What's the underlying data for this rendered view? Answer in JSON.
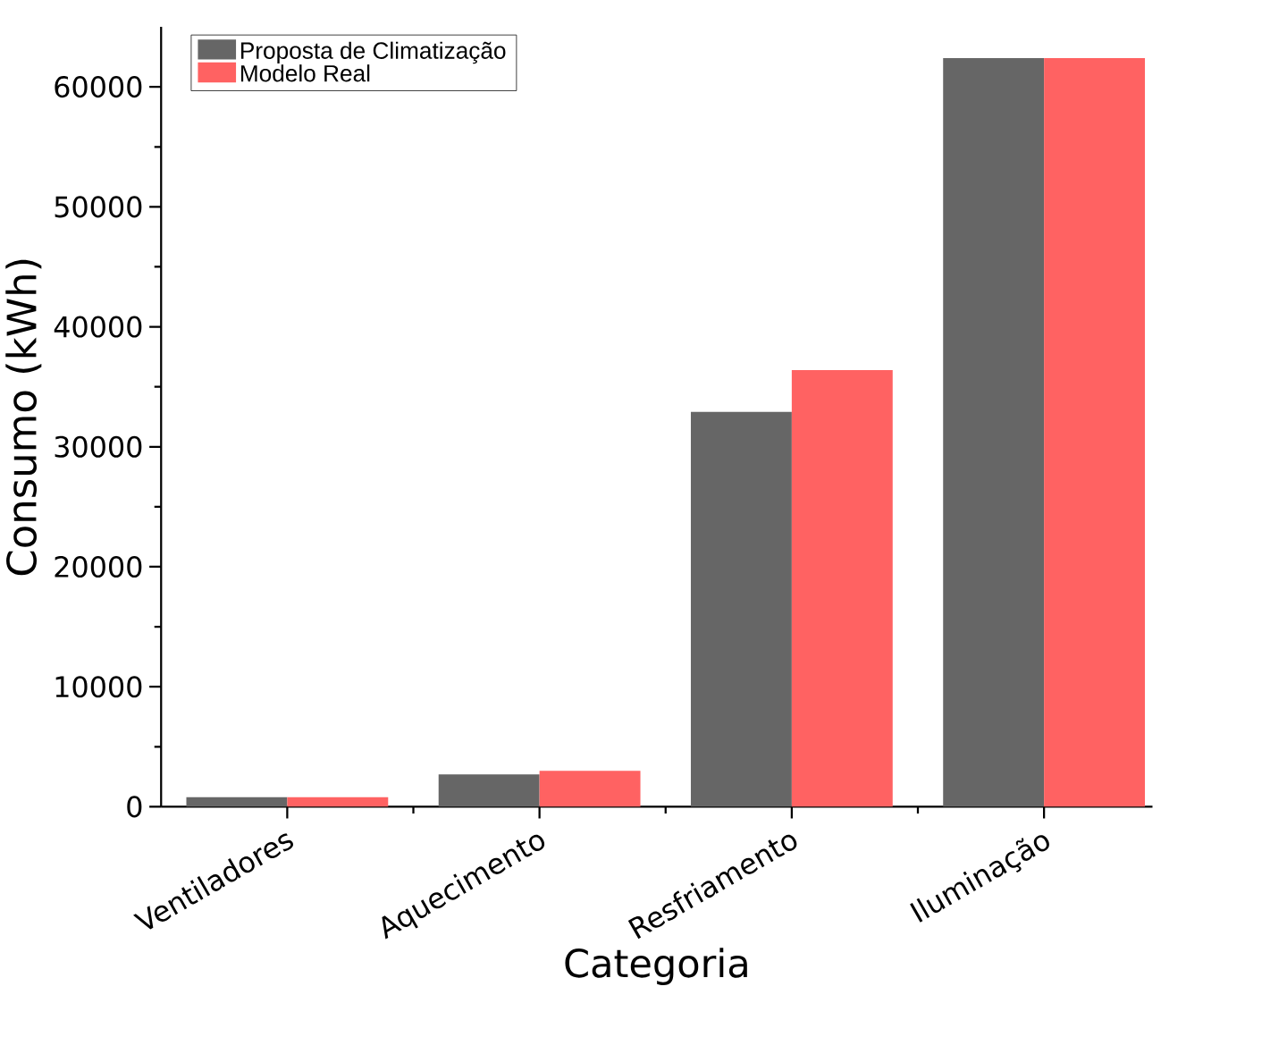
{
  "chart_data": {
    "type": "bar",
    "xlabel": "Categoria",
    "ylabel": "Consumo (kWh)",
    "categories": [
      "Ventiladores",
      "Aquecimento",
      "Resfriamento",
      "Iluminação"
    ],
    "series": [
      {
        "name": "Proposta de Climatização",
        "color": "#666666",
        "values": [
          800,
          2700,
          32900,
          62400
        ]
      },
      {
        "name": "Modelo Real",
        "color": "#ff6262",
        "values": [
          800,
          3000,
          36400,
          62400
        ]
      }
    ],
    "ylim": [
      0,
      65000
    ],
    "yticks": [
      0,
      10000,
      20000,
      30000,
      40000,
      50000,
      60000
    ],
    "legend": "top left"
  }
}
